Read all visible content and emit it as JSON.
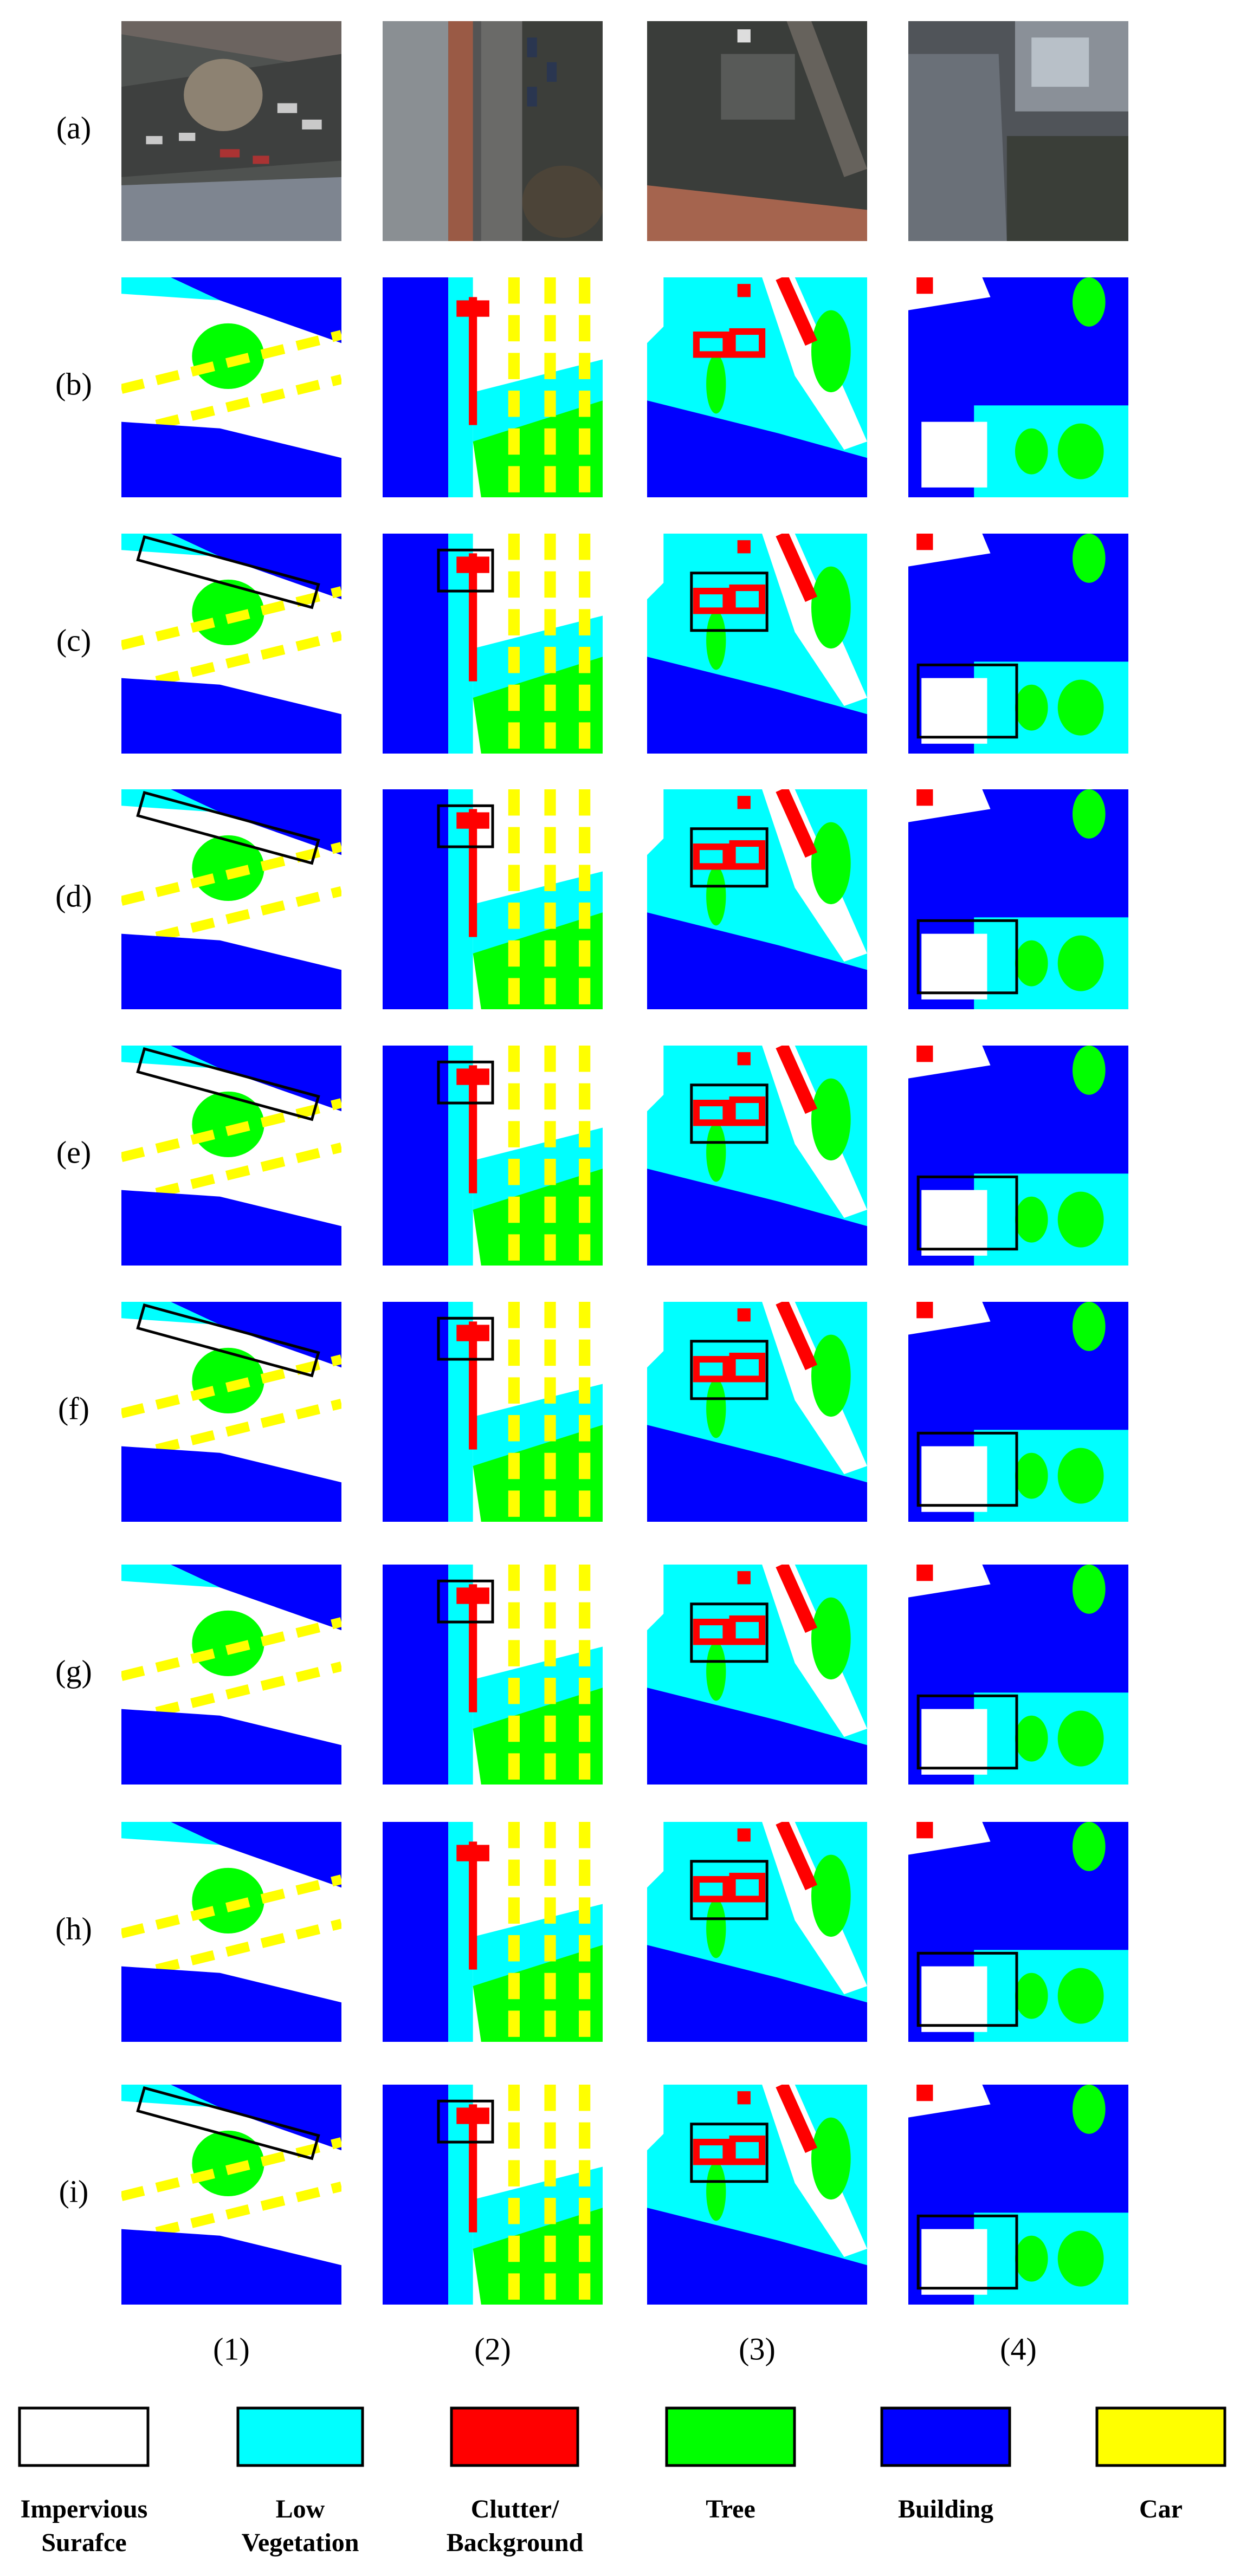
{
  "rows": [
    "(a)",
    "(b)",
    "(c)",
    "(d)",
    "(e)",
    "(f)",
    "(g)",
    "(h)",
    "(i)"
  ],
  "columns": [
    "(1)",
    "(2)",
    "(3)",
    "(4)"
  ],
  "legend": [
    [
      "Impervious",
      "Surafce"
    ],
    [
      "Low",
      "Vegetation"
    ],
    [
      "Clutter/",
      "Background"
    ],
    [
      "Tree"
    ],
    [
      "Building"
    ],
    [
      "Car"
    ]
  ]
}
